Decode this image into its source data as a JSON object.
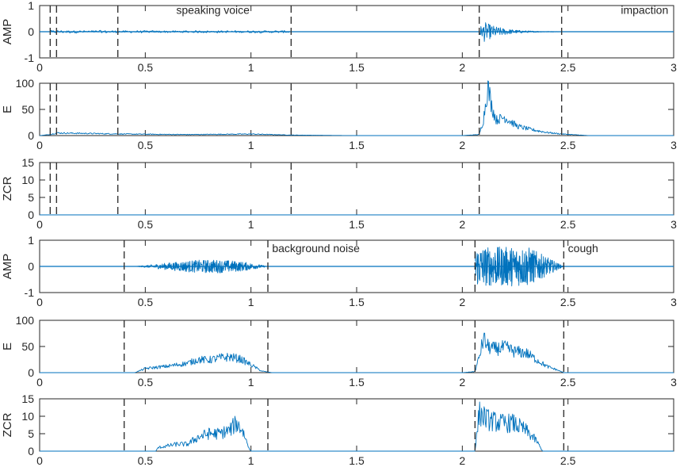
{
  "colors": {
    "signal": "#0072BD",
    "axes": "#262626",
    "marker": "#333333"
  },
  "chart_data": [
    {
      "type": "line",
      "ylabel": "AMP",
      "xlim": [
        0,
        3
      ],
      "ylim": [
        -1,
        1
      ],
      "xticks": [
        "0",
        "0.5",
        "1",
        "1.5",
        "2",
        "2.5",
        "3"
      ],
      "yticks": [
        "-1",
        "0",
        "1"
      ],
      "markers": [
        0.05,
        0.08,
        0.37,
        1.19,
        2.08,
        2.47
      ],
      "annotations": [
        {
          "text": "speaking voice",
          "x": 0.82,
          "y": 0.68
        },
        {
          "text": "impaction",
          "x": 2.75,
          "y": 0.68
        }
      ],
      "series": [
        {
          "x": [
            0.05,
            0.37,
            1.19,
            2.08,
            2.47,
            3.0
          ],
          "y": [
            0,
            0,
            0,
            0,
            0,
            0
          ]
        }
      ]
    },
    {
      "type": "line",
      "ylabel": "E",
      "xlim": [
        0,
        3
      ],
      "ylim": [
        0,
        100
      ],
      "xticks": [
        "0",
        "0.5",
        "1",
        "1.5",
        "2",
        "2.5",
        "3"
      ],
      "yticks": [
        "0",
        "50",
        "100"
      ],
      "markers": [
        0.05,
        0.08,
        0.37,
        1.19,
        2.08,
        2.47
      ],
      "annotations": [],
      "series": [
        {
          "x": [
            0,
            0.05,
            0.08,
            0.4,
            0.7,
            1.0,
            1.19,
            1.5,
            2.0,
            2.08,
            2.1,
            2.12,
            2.14,
            2.16,
            2.2,
            2.26,
            2.32,
            2.4,
            2.47,
            2.6,
            3.0
          ],
          "y": [
            0,
            2,
            5,
            3,
            2,
            3,
            1,
            0,
            0,
            2,
            30,
            94,
            55,
            30,
            35,
            18,
            12,
            6,
            3,
            0,
            0
          ]
        }
      ]
    },
    {
      "type": "line",
      "ylabel": "ZCR",
      "xlim": [
        0,
        3
      ],
      "ylim": [
        0,
        15
      ],
      "xticks": [
        "0",
        "0.5",
        "1",
        "1.5",
        "2",
        "2.5",
        "3"
      ],
      "yticks": [
        "0",
        "5",
        "10",
        "15"
      ],
      "markers": [
        0.05,
        0.08,
        0.37,
        1.19,
        2.08,
        2.47
      ],
      "annotations": [],
      "series": [
        {
          "x": [
            0,
            3.0
          ],
          "y": [
            0,
            0
          ]
        }
      ]
    },
    {
      "type": "line",
      "ylabel": "AMP",
      "xlim": [
        0,
        3
      ],
      "ylim": [
        -1,
        1
      ],
      "xticks": [
        "0",
        "0.5",
        "1",
        "1.5",
        "2",
        "2.5",
        "3"
      ],
      "yticks": [
        "-1",
        "0",
        "1"
      ],
      "markers": [
        0.4,
        1.08,
        2.06,
        2.48
      ],
      "annotations": [
        {
          "text": "background noise",
          "x": 1.1,
          "y": 0.55
        },
        {
          "text": "cough",
          "x": 2.5,
          "y": 0.55
        }
      ],
      "series": [
        {
          "x": [
            0.4,
            0.6,
            0.8,
            0.95,
            1.08,
            2.06,
            2.2,
            2.35,
            2.48,
            3.0
          ],
          "y": [
            0,
            0,
            0,
            0,
            0,
            0,
            0,
            0,
            0,
            0
          ]
        }
      ]
    },
    {
      "type": "line",
      "ylabel": "E",
      "xlim": [
        0,
        3
      ],
      "ylim": [
        0,
        100
      ],
      "xticks": [
        "0",
        "0.5",
        "1",
        "1.5",
        "2",
        "2.5",
        "3"
      ],
      "yticks": [
        "0",
        "50",
        "100"
      ],
      "markers": [
        0.4,
        1.08,
        2.06,
        2.48
      ],
      "annotations": [],
      "series": [
        {
          "x": [
            0,
            0.45,
            0.5,
            0.6,
            0.7,
            0.75,
            0.8,
            0.85,
            0.9,
            0.95,
            1.0,
            1.05,
            1.1,
            1.5,
            2.0,
            2.06,
            2.08,
            2.1,
            2.12,
            2.15,
            2.2,
            2.25,
            2.3,
            2.35,
            2.4,
            2.45,
            2.48,
            3.0
          ],
          "y": [
            0,
            0,
            8,
            12,
            18,
            25,
            24,
            28,
            30,
            26,
            15,
            3,
            0,
            0,
            0,
            2,
            30,
            65,
            50,
            45,
            48,
            40,
            38,
            25,
            12,
            5,
            0,
            0
          ]
        }
      ]
    },
    {
      "type": "line",
      "ylabel": "ZCR",
      "xlim": [
        0,
        3
      ],
      "ylim": [
        0,
        15
      ],
      "xticks": [
        "0",
        "0.5",
        "1",
        "1.5",
        "2",
        "2.5",
        ""
      ],
      "yticks": [
        "0",
        "5",
        "10",
        "15"
      ],
      "markers": [
        0.4,
        1.08,
        2.06,
        2.48
      ],
      "annotations": [],
      "series": [
        {
          "x": [
            0,
            0.55,
            0.56,
            0.65,
            0.7,
            0.75,
            0.8,
            0.85,
            0.9,
            0.93,
            0.96,
            0.99,
            1.0,
            2.0,
            2.06,
            2.08,
            2.12,
            2.18,
            2.24,
            2.3,
            2.35,
            2.38,
            3.0
          ],
          "y": [
            0,
            0,
            1,
            2,
            2,
            4,
            5,
            5,
            6,
            8,
            6,
            1,
            0,
            0,
            0,
            11,
            9,
            8,
            8,
            6,
            3,
            0,
            0
          ]
        }
      ]
    }
  ]
}
